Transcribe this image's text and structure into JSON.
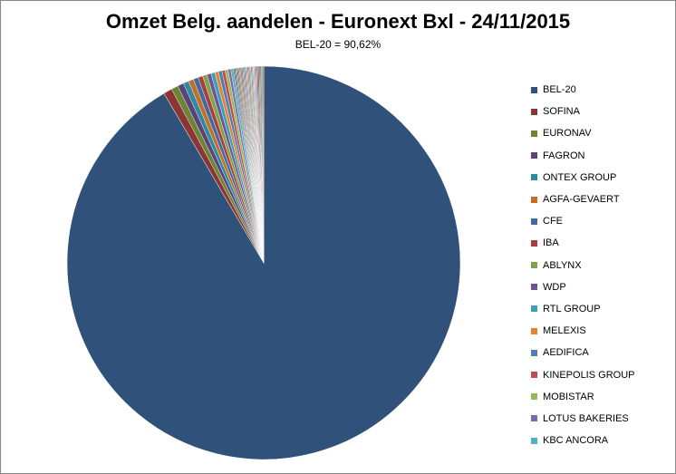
{
  "chart_data": {
    "type": "pie",
    "title": "Omzet Belg. aandelen - Euronext Bxl - 24/11/2015",
    "subtitle": "BEL-20 = 90,62%",
    "legend_position": "right",
    "start_angle": "top, clockwise",
    "slices": [
      {
        "name": "BEL-20",
        "value": 90.62,
        "color": "#30527a"
      },
      {
        "name": "SOFINA",
        "value": 0.7,
        "color": "#8b3632"
      },
      {
        "name": "EURONAV",
        "value": 0.55,
        "color": "#6d8434"
      },
      {
        "name": "FAGRON",
        "value": 0.5,
        "color": "#58447a"
      },
      {
        "name": "ONTEX GROUP",
        "value": 0.45,
        "color": "#2f8ba0"
      },
      {
        "name": "AGFA-GEVAERT",
        "value": 0.42,
        "color": "#c66e28"
      },
      {
        "name": "CFE",
        "value": 0.4,
        "color": "#3d6ca3"
      },
      {
        "name": "IBA",
        "value": 0.38,
        "color": "#a4413d"
      },
      {
        "name": "ABLYNX",
        "value": 0.36,
        "color": "#83a14a"
      },
      {
        "name": "WDP",
        "value": 0.34,
        "color": "#6c5593"
      },
      {
        "name": "RTL GROUP",
        "value": 0.32,
        "color": "#3c9fb8"
      },
      {
        "name": "MELEXIS",
        "value": 0.3,
        "color": "#e2843a"
      },
      {
        "name": "AEDIFICA",
        "value": 0.28,
        "color": "#4d7db5"
      },
      {
        "name": "KINEPOLIS GROUP",
        "value": 0.26,
        "color": "#b9504c"
      },
      {
        "name": "MOBISTAR",
        "value": 0.24,
        "color": "#97b85d"
      },
      {
        "name": "LOTUS BAKERIES",
        "value": 0.22,
        "color": "#7e68a6"
      },
      {
        "name": "KBC ANCORA",
        "value": 0.2,
        "color": "#4cb3cc"
      }
    ],
    "other_slices_count": 26,
    "other_slices_total": 2.46,
    "other_palette": [
      "#30527a",
      "#8b3632",
      "#6d8434",
      "#58447a",
      "#2f8ba0",
      "#c66e28",
      "#3d6ca3",
      "#a4413d",
      "#83a14a",
      "#6c5593",
      "#3c9fb8",
      "#e2843a",
      "#4d7db5",
      "#b9504c",
      "#97b85d",
      "#7e68a6",
      "#4cb3cc",
      "#f29a4f",
      "#6390c8",
      "#cc6a66"
    ]
  }
}
